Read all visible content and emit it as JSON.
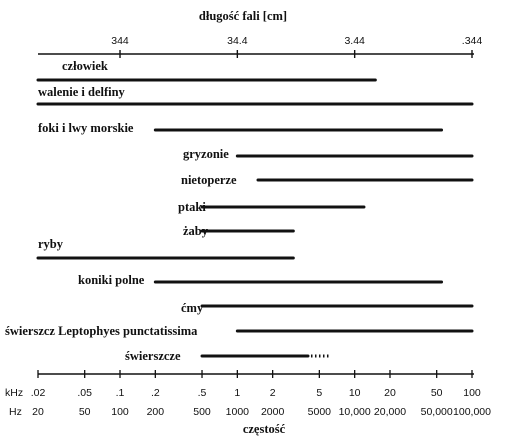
{
  "chart_data": {
    "type": "range",
    "title": "długość fali [cm]",
    "xlabel": "częstość",
    "x_scale": "log",
    "xlim": [
      0.02,
      100
    ],
    "top_axis": {
      "label": "długość fali [cm]",
      "ticks": [
        {
          "label": "344",
          "khz": 0.1
        },
        {
          "label": "34.4",
          "khz": 1
        },
        {
          "label": "3.44",
          "khz": 10
        },
        {
          "label": ".344",
          "khz": 100
        }
      ]
    },
    "bottom_axis": {
      "row1_unit": "kHz",
      "row2_unit": "Hz",
      "ticks": [
        {
          "khz": 0.02,
          "khz_label": ".02",
          "hz_label": "20"
        },
        {
          "khz": 0.05,
          "khz_label": ".05",
          "hz_label": "50"
        },
        {
          "khz": 0.1,
          "khz_label": ".1",
          "hz_label": "100"
        },
        {
          "khz": 0.2,
          "khz_label": ".2",
          "hz_label": "200"
        },
        {
          "khz": 0.5,
          "khz_label": ".5",
          "hz_label": "500"
        },
        {
          "khz": 1,
          "khz_label": "1",
          "hz_label": "1000"
        },
        {
          "khz": 2,
          "khz_label": "2",
          "hz_label": "2000"
        },
        {
          "khz": 5,
          "khz_label": "5",
          "hz_label": "5000"
        },
        {
          "khz": 10,
          "khz_label": "10",
          "hz_label": "10,000"
        },
        {
          "khz": 20,
          "khz_label": "20",
          "hz_label": "20,000"
        },
        {
          "khz": 50,
          "khz_label": "50",
          "hz_label": "50,000"
        },
        {
          "khz": 100,
          "khz_label": "100",
          "hz_label": "100,000"
        }
      ]
    },
    "series": [
      {
        "name": "człowiek",
        "min_khz": 0.02,
        "max_khz": 15
      },
      {
        "name": "walenie i delfiny",
        "min_khz": 0.02,
        "max_khz": 100
      },
      {
        "name": "foki i lwy morskie",
        "min_khz": 0.2,
        "max_khz": 55
      },
      {
        "name": "gryzonie",
        "min_khz": 1,
        "max_khz": 100
      },
      {
        "name": "nietoperze",
        "min_khz": 1.5,
        "max_khz": 100
      },
      {
        "name": "ptaki",
        "min_khz": 0.5,
        "max_khz": 12
      },
      {
        "name": "żaby",
        "min_khz": 0.5,
        "max_khz": 3
      },
      {
        "name": "ryby",
        "min_khz": 0.02,
        "max_khz": 3
      },
      {
        "name": "koniki polne",
        "min_khz": 0.2,
        "max_khz": 55
      },
      {
        "name": "ćmy",
        "min_khz": 0.5,
        "max_khz": 100
      },
      {
        "name": "świerszcz Leptophyes punctatissima",
        "min_khz": 1,
        "max_khz": 100
      },
      {
        "name": "świerszcze",
        "min_khz": 0.5,
        "max_khz": 4,
        "dotted_to_khz": 6
      }
    ]
  }
}
